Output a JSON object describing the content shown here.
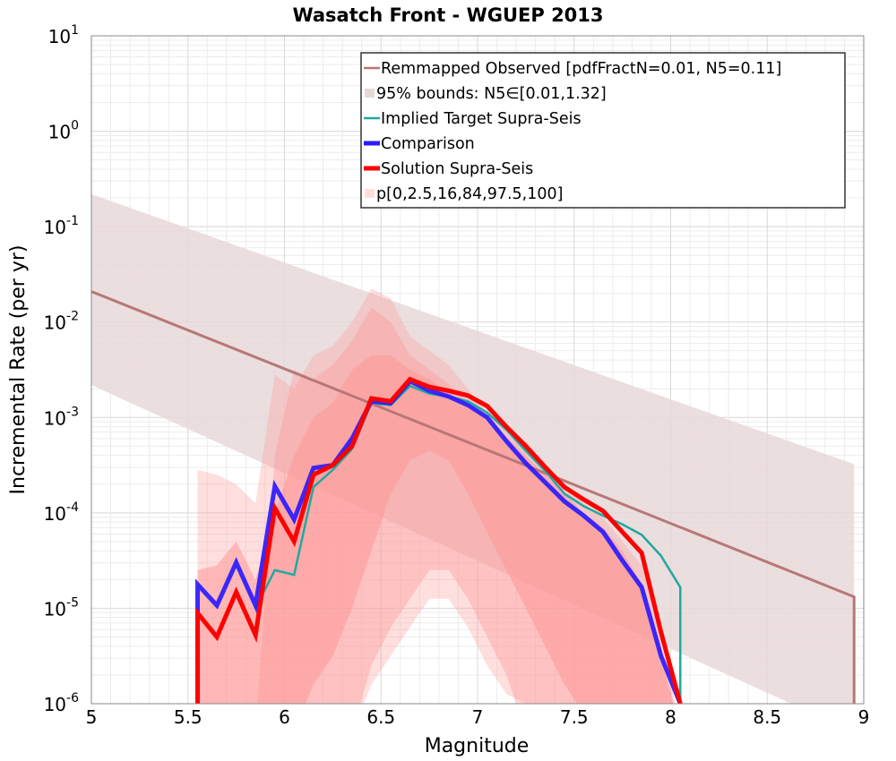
{
  "chart_data": {
    "type": "line",
    "title": "Wasatch Front - WGUEP 2013",
    "xlabel": "Magnitude",
    "ylabel": "Incremental Rate (per yr)",
    "xlim": [
      5,
      9
    ],
    "ylim_log10": [
      -6,
      1
    ],
    "y_scale": "log",
    "grid": true,
    "legend_position": "top-right",
    "x_ticks": [
      "5",
      "5.5",
      "6",
      "6.5",
      "7",
      "7.5",
      "8",
      "8.5",
      "9"
    ],
    "y_ticks": [
      {
        "base": "10",
        "exp": "1"
      },
      {
        "base": "10",
        "exp": "0"
      },
      {
        "base": "10",
        "exp": "-1"
      },
      {
        "base": "10",
        "exp": "-2"
      },
      {
        "base": "10",
        "exp": "-3"
      },
      {
        "base": "10",
        "exp": "-4"
      },
      {
        "base": "10",
        "exp": "-5"
      },
      {
        "base": "10",
        "exp": "-6"
      }
    ],
    "legend": [
      {
        "label": "Remmapped Observed [pdfFractN=0.01, N5=0.11]",
        "style": "line",
        "color": "#b87777"
      },
      {
        "label": "95% bounds: N5∈[0.01,1.32]",
        "style": "fill",
        "color": "#e8d8d8"
      },
      {
        "label": "Implied Target Supra-Seis",
        "style": "line",
        "color": "#20a8a0"
      },
      {
        "label": "Comparison",
        "style": "thickline",
        "color": "#2a1aff"
      },
      {
        "label": "Solution Supra-Seis",
        "style": "thickline",
        "color": "#ff0000"
      },
      {
        "label": "p[0,2.5,16,84,97.5,100]",
        "style": "fill",
        "color": "#ffdddd"
      }
    ],
    "observed": {
      "name": "Remmapped Observed [pdfFractN=0.01, N5=0.11]",
      "color": "#b87777",
      "x": [
        5.0,
        8.95,
        8.95
      ],
      "y_log10": [
        -1.68,
        -4.88,
        -6.0
      ]
    },
    "observed_bounds": {
      "name": "95% bounds: N5∈[0.01,1.32]",
      "color": "#e8d8d8",
      "x": [
        5.0,
        8.95
      ],
      "upper_log10": [
        -0.66,
        -3.49
      ],
      "lower_log10": [
        -2.66,
        -6.3
      ]
    },
    "fractile_bands": {
      "color": "#ff9898",
      "x": [
        5.55,
        5.65,
        5.75,
        5.85,
        5.95,
        6.05,
        6.15,
        6.25,
        6.35,
        6.45,
        6.55,
        6.65,
        6.75,
        6.85,
        6.95,
        7.05,
        7.15,
        7.25,
        7.35,
        7.45,
        7.55,
        7.65,
        7.75,
        7.85,
        7.95,
        8.05
      ],
      "bands": [
        {
          "opacity": 0.32,
          "upper_log10": [
            -3.55,
            -3.6,
            -3.7,
            -3.9,
            -2.55,
            -2.7,
            -2.35,
            -2.25,
            -2.0,
            -1.65,
            -1.75,
            -2.15,
            -2.3,
            -2.45,
            -2.7,
            -2.95,
            -3.15,
            -3.3,
            -3.5,
            -3.7,
            -3.9,
            -4.05,
            -4.3,
            -4.55,
            -5.2,
            -6.3
          ],
          "lower_log10": [
            -6.3,
            -6.3,
            -6.3,
            -6.3,
            -6.3,
            -6.3,
            -6.3,
            -6.3,
            -6.3,
            -5.8,
            -5.5,
            -5.2,
            -4.9,
            -4.9,
            -5.2,
            -5.6,
            -5.9,
            -6.0,
            -6.3,
            -6.3,
            -6.3,
            -6.3,
            -6.3,
            -6.3,
            -6.3,
            -6.3
          ]
        },
        {
          "opacity": 0.4,
          "upper_log10": [
            -6.3,
            -6.3,
            -6.3,
            -6.3,
            -3.4,
            -2.5,
            -2.6,
            -2.45,
            -2.2,
            -1.85,
            -2.0,
            -2.35,
            -2.5,
            -2.65,
            -2.85,
            -3.05,
            -3.25,
            -3.45,
            -3.65,
            -3.85,
            -4.05,
            -4.2,
            -4.45,
            -4.75,
            -5.4,
            -6.3
          ],
          "lower_log10": [
            -6.3,
            -6.3,
            -6.3,
            -6.3,
            -6.3,
            -6.3,
            -6.3,
            -6.3,
            -6.3,
            -5.6,
            -5.2,
            -4.9,
            -4.6,
            -4.6,
            -4.9,
            -5.3,
            -5.7,
            -6.3,
            -6.3,
            -6.3,
            -6.3,
            -6.3,
            -6.3,
            -6.3,
            -6.3,
            -6.3
          ]
        },
        {
          "opacity": 0.55,
          "upper_log10": [
            -4.6,
            -4.55,
            -4.3,
            -4.7,
            -4.0,
            -3.4,
            -3.0,
            -2.85,
            -2.5,
            -2.35,
            -2.35,
            -2.5,
            -2.6,
            -2.75,
            -2.9,
            -3.0,
            -3.2,
            -3.4,
            -3.6,
            -3.8,
            -4.0,
            -4.15,
            -4.4,
            -4.75,
            -5.5,
            -6.3
          ],
          "lower_log10": [
            -6.3,
            -6.3,
            -6.3,
            -6.3,
            -6.3,
            -6.3,
            -5.8,
            -5.5,
            -5.0,
            -4.4,
            -3.8,
            -3.45,
            -3.35,
            -3.45,
            -3.8,
            -4.2,
            -4.6,
            -5.0,
            -5.4,
            -5.8,
            -6.1,
            -6.3,
            -6.3,
            -6.3,
            -6.3,
            -6.3
          ]
        }
      ]
    },
    "series": [
      {
        "name": "Implied Target Supra-Seis",
        "color": "#20a8a0",
        "width": 2.5,
        "x": [
          5.85,
          5.95,
          6.05,
          6.15,
          6.25,
          6.35,
          6.45,
          6.55,
          6.65,
          6.75,
          6.85,
          6.95,
          7.05,
          7.15,
          7.25,
          7.35,
          7.45,
          7.55,
          7.65,
          7.75,
          7.85,
          7.95,
          8.05,
          8.05
        ],
        "y_log10": [
          -5.0,
          -4.6,
          -4.65,
          -3.73,
          -3.55,
          -3.33,
          -2.85,
          -2.87,
          -2.67,
          -2.75,
          -2.78,
          -2.83,
          -2.95,
          -3.13,
          -3.35,
          -3.56,
          -3.8,
          -3.93,
          -4.03,
          -4.12,
          -4.23,
          -4.45,
          -4.78,
          -6.0
        ]
      },
      {
        "name": "Comparison",
        "color": "#2a1aff",
        "width": 5,
        "x": [
          5.55,
          5.55,
          5.65,
          5.75,
          5.85,
          5.95,
          6.05,
          6.15,
          6.25,
          6.35,
          6.45,
          6.55,
          6.65,
          6.75,
          6.85,
          6.95,
          7.05,
          7.15,
          7.25,
          7.35,
          7.45,
          7.55,
          7.65,
          7.75,
          7.85,
          7.95,
          8.05
        ],
        "y_log10": [
          -6.0,
          -4.75,
          -4.97,
          -4.52,
          -4.97,
          -3.72,
          -4.07,
          -3.53,
          -3.5,
          -3.22,
          -2.83,
          -2.85,
          -2.62,
          -2.72,
          -2.78,
          -2.87,
          -3.0,
          -3.25,
          -3.48,
          -3.68,
          -3.88,
          -4.03,
          -4.2,
          -4.5,
          -4.78,
          -5.5,
          -6.0
        ]
      },
      {
        "name": "Solution Supra-Seis",
        "color": "#ff0000",
        "width": 5,
        "x": [
          5.55,
          5.55,
          5.65,
          5.75,
          5.85,
          5.95,
          6.05,
          6.15,
          6.25,
          6.35,
          6.45,
          6.55,
          6.65,
          6.75,
          6.85,
          6.95,
          7.05,
          7.15,
          7.25,
          7.35,
          7.45,
          7.55,
          7.65,
          7.75,
          7.85,
          7.95,
          8.05
        ],
        "y_log10": [
          -6.0,
          -5.05,
          -5.3,
          -4.83,
          -5.28,
          -3.95,
          -4.3,
          -3.6,
          -3.5,
          -3.3,
          -2.8,
          -2.83,
          -2.6,
          -2.68,
          -2.72,
          -2.77,
          -2.88,
          -3.1,
          -3.3,
          -3.52,
          -3.73,
          -3.86,
          -3.98,
          -4.2,
          -4.42,
          -5.25,
          -6.0
        ]
      }
    ]
  }
}
